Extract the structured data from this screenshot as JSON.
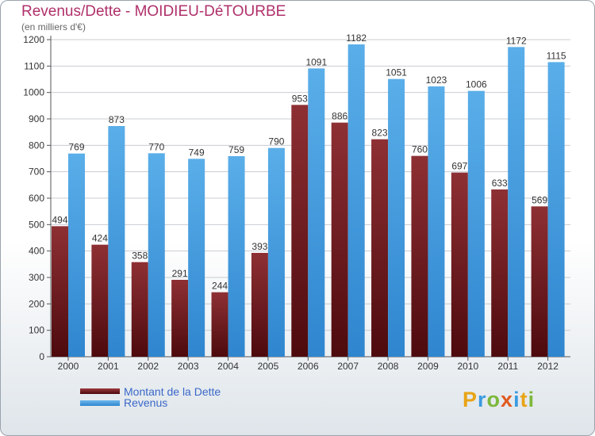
{
  "title": "Revenus/Dette - MOIDIEU-DéTOURBE",
  "subtitle": "(en milliers d'€)",
  "logo": "Proxiti",
  "colors": {
    "dette": "#7a1f22",
    "revenus": "#4a9fe0",
    "title": "#b0306a",
    "legend_text": "#3b68c8"
  },
  "chart_data": {
    "type": "bar",
    "categories": [
      "2000",
      "2001",
      "2002",
      "2003",
      "2004",
      "2005",
      "2006",
      "2007",
      "2008",
      "2009",
      "2010",
      "2011",
      "2012"
    ],
    "series": [
      {
        "name": "Montant de la Dette",
        "values": [
          494,
          424,
          358,
          291,
          244,
          393,
          953,
          886,
          823,
          760,
          697,
          633,
          569
        ]
      },
      {
        "name": "Revenus",
        "values": [
          769,
          873,
          770,
          749,
          759,
          790,
          1091,
          1182,
          1051,
          1023,
          1006,
          1172,
          1115
        ]
      }
    ],
    "ylim": [
      0,
      1200
    ],
    "yticks": [
      0,
      100,
      200,
      300,
      400,
      500,
      600,
      700,
      800,
      900,
      1000,
      1100,
      1200
    ],
    "grid": true,
    "legend": "bottom-left"
  }
}
